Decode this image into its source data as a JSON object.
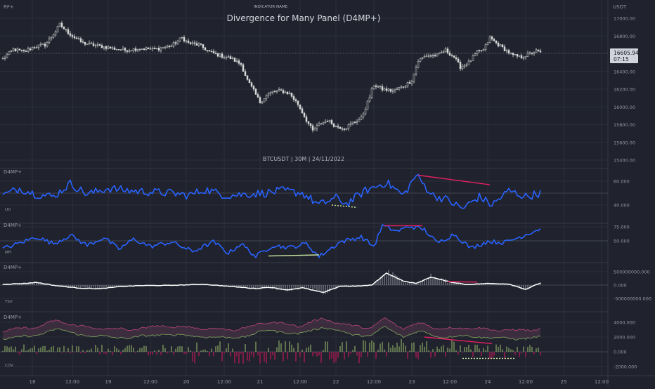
{
  "colors": {
    "background": "#20232d",
    "grid": "#2b2f3a",
    "text": "#9598a1",
    "title": "#d1d4dc",
    "candle": "#d8d8d8",
    "line_blue": "#2962ff",
    "line_white": "#ffffff",
    "bear_div": "#e91e63",
    "bull_div": "#c8e6a0",
    "green_bar": "#8aa863",
    "pink_bar": "#c2185b",
    "price_label_bg": "#d1d4dc"
  },
  "header": {
    "indicator_name": "INDICATOR NAME",
    "title": "Divergence for Many Panel (D4MP+)",
    "top_left": "RF+",
    "top_right": "USDT",
    "subtitle": "BTCUSDT | 30M | 24/11/2022"
  },
  "price_tag": {
    "price": "16605.94",
    "countdown": "07:15"
  },
  "chart_data": [
    {
      "type": "candlestick",
      "symbol": "BTCUSDT",
      "interval": "30M",
      "ylim": [
        15400,
        17100
      ],
      "y_ticks": [
        "17000.00",
        "16800.00",
        "16600.00",
        "16400.00",
        "16200.00",
        "16000.00",
        "15800.00",
        "15600.00",
        "15400.00"
      ],
      "close_path": [
        [
          0,
          16540
        ],
        [
          5,
          16650
        ],
        [
          10,
          16620
        ],
        [
          15,
          16680
        ],
        [
          20,
          16700
        ],
        [
          25,
          16850
        ],
        [
          27,
          16930
        ],
        [
          29,
          16880
        ],
        [
          33,
          16800
        ],
        [
          38,
          16720
        ],
        [
          45,
          16690
        ],
        [
          52,
          16660
        ],
        [
          58,
          16640
        ],
        [
          65,
          16660
        ],
        [
          72,
          16650
        ],
        [
          80,
          16690
        ],
        [
          85,
          16780
        ],
        [
          88,
          16720
        ],
        [
          93,
          16700
        ],
        [
          98,
          16620
        ],
        [
          103,
          16580
        ],
        [
          108,
          16550
        ],
        [
          113,
          16480
        ],
        [
          116,
          16300
        ],
        [
          119,
          16180
        ],
        [
          122,
          16050
        ],
        [
          125,
          16130
        ],
        [
          128,
          16170
        ],
        [
          132,
          16180
        ],
        [
          136,
          16150
        ],
        [
          140,
          16030
        ],
        [
          144,
          15850
        ],
        [
          147,
          15730
        ],
        [
          150,
          15800
        ],
        [
          154,
          15850
        ],
        [
          158,
          15780
        ],
        [
          162,
          15760
        ],
        [
          166,
          15820
        ],
        [
          170,
          15870
        ],
        [
          173,
          16050
        ],
        [
          176,
          16250
        ],
        [
          180,
          16200
        ],
        [
          185,
          16180
        ],
        [
          190,
          16230
        ],
        [
          194,
          16300
        ],
        [
          197,
          16520
        ],
        [
          201,
          16580
        ],
        [
          206,
          16580
        ],
        [
          210,
          16640
        ],
        [
          214,
          16560
        ],
        [
          217,
          16450
        ],
        [
          221,
          16500
        ],
        [
          225,
          16620
        ],
        [
          228,
          16640
        ],
        [
          231,
          16780
        ],
        [
          234,
          16720
        ],
        [
          238,
          16650
        ],
        [
          242,
          16580
        ],
        [
          246,
          16560
        ],
        [
          250,
          16600
        ],
        [
          253,
          16630
        ],
        [
          255,
          16610
        ]
      ],
      "annotations": []
    },
    {
      "type": "line",
      "panel_label": "D4MP+",
      "indicator": "UO",
      "ylim": [
        30,
        72
      ],
      "y_ticks": [
        "60.000",
        "40.000"
      ],
      "midline": 50,
      "anchors": [
        [
          0,
          48
        ],
        [
          8,
          54
        ],
        [
          16,
          49
        ],
        [
          24,
          47
        ],
        [
          32,
          58
        ],
        [
          40,
          49
        ],
        [
          50,
          54
        ],
        [
          60,
          52
        ],
        [
          70,
          51
        ],
        [
          80,
          50
        ],
        [
          88,
          48
        ],
        [
          96,
          53
        ],
        [
          106,
          48
        ],
        [
          115,
          49
        ],
        [
          124,
          50
        ],
        [
          133,
          52
        ],
        [
          142,
          50
        ],
        [
          150,
          40
        ],
        [
          158,
          46
        ],
        [
          163,
          41
        ],
        [
          172,
          52
        ],
        [
          182,
          59
        ],
        [
          190,
          48
        ],
        [
          196,
          65
        ],
        [
          204,
          48
        ],
        [
          210,
          45
        ],
        [
          218,
          37
        ],
        [
          226,
          47
        ],
        [
          232,
          40
        ],
        [
          240,
          52
        ],
        [
          248,
          47
        ],
        [
          255,
          50
        ]
      ],
      "divergences": [
        {
          "kind": "bearish",
          "from": [
            197,
            65
          ],
          "to": [
            231,
            57
          ]
        },
        {
          "kind": "bullish",
          "from": [
            156,
            40
          ],
          "to": [
            168,
            38
          ]
        }
      ]
    },
    {
      "type": "line",
      "panel_label": "D4MP+",
      "indicator": "MFI",
      "ylim": [
        10,
        90
      ],
      "y_ticks": [
        "75.000",
        "50.000"
      ],
      "midline": 50,
      "anchors": [
        [
          0,
          36
        ],
        [
          8,
          46
        ],
        [
          16,
          57
        ],
        [
          24,
          45
        ],
        [
          32,
          60
        ],
        [
          40,
          42
        ],
        [
          48,
          56
        ],
        [
          55,
          35
        ],
        [
          62,
          53
        ],
        [
          70,
          40
        ],
        [
          80,
          48
        ],
        [
          90,
          31
        ],
        [
          100,
          48
        ],
        [
          107,
          28
        ],
        [
          113,
          45
        ],
        [
          120,
          22
        ],
        [
          128,
          42
        ],
        [
          136,
          38
        ],
        [
          144,
          45
        ],
        [
          150,
          22
        ],
        [
          160,
          48
        ],
        [
          170,
          57
        ],
        [
          176,
          40
        ],
        [
          180,
          77
        ],
        [
          187,
          67
        ],
        [
          193,
          76
        ],
        [
          200,
          70
        ],
        [
          206,
          46
        ],
        [
          214,
          62
        ],
        [
          222,
          37
        ],
        [
          230,
          49
        ],
        [
          238,
          47
        ],
        [
          246,
          58
        ],
        [
          255,
          72
        ]
      ],
      "divergences": [
        {
          "kind": "bullish",
          "from": [
            126,
            23
          ],
          "to": [
            150,
            25
          ]
        },
        {
          "kind": "bearish",
          "from": [
            181,
            77
          ],
          "to": [
            199,
            77
          ]
        }
      ]
    },
    {
      "type": "line+histogram",
      "panel_label": "D4MP+",
      "indicator": "TSV",
      "ylim": [
        -800000000,
        800000000
      ],
      "y_ticks": [
        "500000000.000",
        "0.000",
        "-500000000.000"
      ],
      "midline": 0,
      "anchors": [
        [
          0,
          30000000
        ],
        [
          10,
          60000000
        ],
        [
          16,
          100000000
        ],
        [
          25,
          -20000000
        ],
        [
          36,
          -110000000
        ],
        [
          46,
          -140000000
        ],
        [
          55,
          -60000000
        ],
        [
          65,
          -20000000
        ],
        [
          80,
          -10000000
        ],
        [
          95,
          30000000
        ],
        [
          108,
          -50000000
        ],
        [
          120,
          -130000000
        ],
        [
          126,
          -80000000
        ],
        [
          135,
          -180000000
        ],
        [
          142,
          -100000000
        ],
        [
          152,
          -280000000
        ],
        [
          160,
          -40000000
        ],
        [
          168,
          -40000000
        ],
        [
          175,
          0
        ],
        [
          182,
          450000000
        ],
        [
          190,
          150000000
        ],
        [
          196,
          60000000
        ],
        [
          203,
          300000000
        ],
        [
          212,
          120000000
        ],
        [
          220,
          20000000
        ],
        [
          230,
          60000000
        ],
        [
          240,
          40000000
        ],
        [
          248,
          -160000000
        ],
        [
          255,
          80000000
        ]
      ],
      "divergences": [
        {
          "kind": "bearish",
          "from": [
            211,
            130000000
          ],
          "to": [
            225,
            110000000
          ]
        }
      ]
    },
    {
      "type": "area+histogram",
      "panel_label": "D4MP+",
      "indicator": "CDV",
      "ylim": [
        -2400,
        5000
      ],
      "y_ticks": [
        "4000.000",
        "2000.000",
        "0.000",
        "-2000.000"
      ],
      "midline": 0,
      "anchors": [
        [
          0,
          2200
        ],
        [
          15,
          2600
        ],
        [
          25,
          3500
        ],
        [
          40,
          2600
        ],
        [
          60,
          2300
        ],
        [
          75,
          2800
        ],
        [
          90,
          2600
        ],
        [
          105,
          2300
        ],
        [
          115,
          2500
        ],
        [
          126,
          3400
        ],
        [
          140,
          2800
        ],
        [
          152,
          3800
        ],
        [
          165,
          2800
        ],
        [
          175,
          2600
        ],
        [
          181,
          3800
        ],
        [
          190,
          2500
        ],
        [
          198,
          3200
        ],
        [
          208,
          2400
        ],
        [
          220,
          2600
        ],
        [
          232,
          2300
        ],
        [
          244,
          2200
        ],
        [
          255,
          2400
        ]
      ],
      "divergences": [
        {
          "kind": "bearish",
          "from": [
            200,
            2000
          ],
          "to": [
            232,
            1100
          ]
        },
        {
          "kind": "bullish",
          "from": [
            218,
            -900
          ],
          "to": [
            243,
            -900
          ]
        }
      ]
    }
  ],
  "x_axis": {
    "ticks": [
      {
        "i": 14,
        "label": "18"
      },
      {
        "i": 33,
        "label": "12:00"
      },
      {
        "i": 50,
        "label": "19"
      },
      {
        "i": 70,
        "label": "12:00"
      },
      {
        "i": 87,
        "label": "20"
      },
      {
        "i": 105,
        "label": "12:00"
      },
      {
        "i": 122,
        "label": "21"
      },
      {
        "i": 141,
        "label": "12:00"
      },
      {
        "i": 158,
        "label": "22"
      },
      {
        "i": 176,
        "label": "12:00"
      },
      {
        "i": 194,
        "label": "23"
      },
      {
        "i": 212,
        "label": "12:00"
      },
      {
        "i": 230,
        "label": "24"
      },
      {
        "i": 248,
        "label": "12:00"
      },
      {
        "i": 266,
        "label": "25"
      },
      {
        "i": 284,
        "label": "12:00"
      }
    ]
  }
}
